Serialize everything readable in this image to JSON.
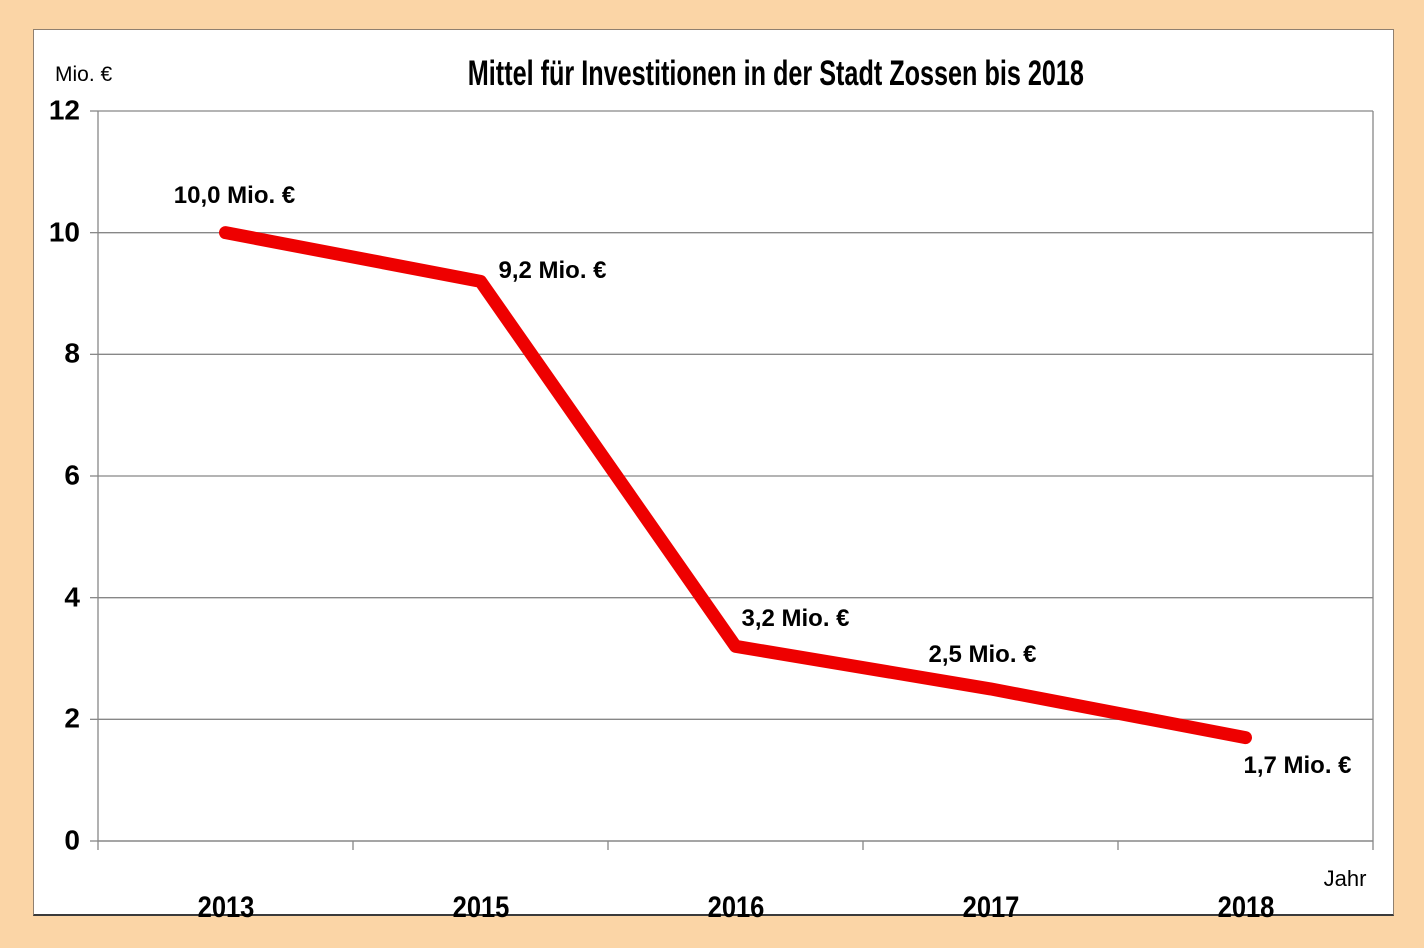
{
  "window": {
    "frame_color": "#fbd5a6",
    "panel_background": "#ffffff"
  },
  "chart": {
    "title": "Mittel für Investitionen in der Stadt Zossen bis 2018",
    "y_axis_unit": "Mio. €",
    "x_axis_unit": "Jahr"
  },
  "chart_data": {
    "type": "line",
    "title": "Mittel für Investitionen in der Stadt Zossen bis 2018",
    "categories": [
      "2013",
      "2015",
      "2016",
      "2017",
      "2018"
    ],
    "values": [
      10.0,
      9.2,
      3.2,
      2.5,
      1.7
    ],
    "point_labels": [
      "10,0 Mio. €",
      "9,2 Mio. €",
      "3,2 Mio. €",
      "2,5 Mio. €",
      "1,7 Mio. €"
    ],
    "xlabel": "Jahr",
    "ylabel": "Mio. €",
    "ylim": [
      0,
      12
    ],
    "y_ticks": [
      0,
      2,
      4,
      6,
      8,
      10,
      12
    ],
    "grid": true,
    "legend_position": "none",
    "line_color": "#ee0000",
    "grid_color": "#878787",
    "text_color": "#000000"
  }
}
